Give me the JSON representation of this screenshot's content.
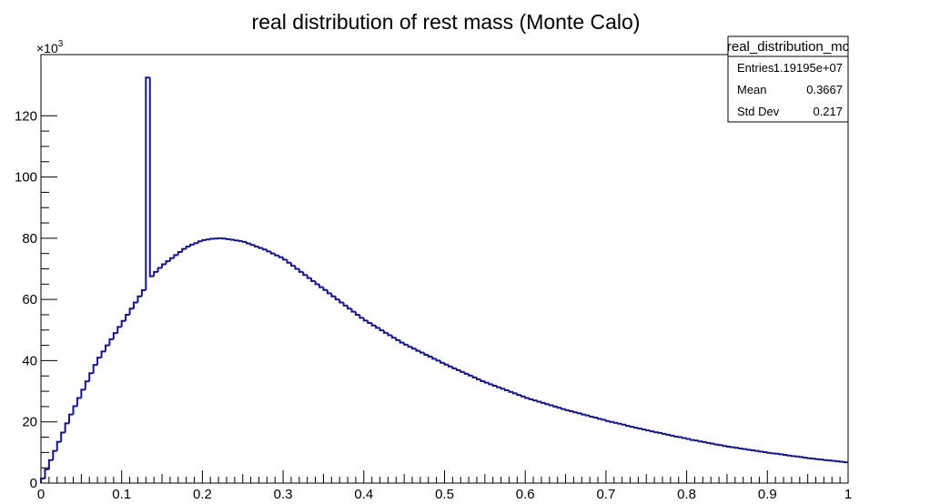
{
  "chart_data": {
    "type": "histogram",
    "title": "real distribution of rest mass (Monte Calo)",
    "y_multiplier": {
      "base": "×10",
      "exponent": "3"
    },
    "color": "#14148c",
    "bins": [
      0,
      0.005,
      0.01,
      0.015,
      0.02,
      0.025,
      0.03,
      0.035,
      0.04,
      0.045,
      0.05,
      0.055,
      0.06,
      0.065,
      0.07,
      0.075,
      0.08,
      0.085,
      0.09,
      0.095,
      0.1,
      0.105,
      0.11,
      0.115,
      0.12,
      0.125,
      0.13,
      0.135,
      0.14,
      0.145,
      0.15,
      0.155,
      0.16,
      0.165,
      0.17,
      0.175,
      0.18,
      0.185,
      0.19,
      0.195,
      0.2,
      0.205,
      0.21,
      0.215,
      0.22,
      0.225,
      0.23,
      0.235,
      0.24,
      0.245,
      0.25,
      0.255,
      0.26,
      0.265,
      0.27,
      0.275,
      0.28,
      0.285,
      0.29,
      0.295,
      0.3,
      0.305,
      0.31,
      0.315,
      0.32,
      0.325,
      0.33,
      0.335,
      0.34,
      0.345,
      0.35,
      0.355,
      0.36,
      0.365,
      0.37,
      0.375,
      0.38,
      0.385,
      0.39,
      0.395,
      0.4,
      0.405,
      0.41,
      0.415,
      0.42,
      0.425,
      0.43,
      0.435,
      0.44,
      0.445,
      0.45,
      0.455,
      0.46,
      0.465,
      0.47,
      0.475,
      0.48,
      0.485,
      0.49,
      0.495,
      0.5,
      0.505,
      0.51,
      0.515,
      0.52,
      0.525,
      0.53,
      0.535,
      0.54,
      0.545,
      0.55,
      0.555,
      0.56,
      0.565,
      0.57,
      0.575,
      0.58,
      0.585,
      0.59,
      0.595,
      0.6,
      0.605,
      0.61,
      0.615,
      0.62,
      0.625,
      0.63,
      0.635,
      0.64,
      0.645,
      0.65,
      0.655,
      0.66,
      0.665,
      0.67,
      0.675,
      0.68,
      0.685,
      0.69,
      0.695,
      0.7,
      0.705,
      0.71,
      0.715,
      0.72,
      0.725,
      0.73,
      0.735,
      0.74,
      0.745,
      0.75,
      0.755,
      0.76,
      0.765,
      0.77,
      0.775,
      0.78,
      0.785,
      0.79,
      0.795,
      0.8,
      0.805,
      0.81,
      0.815,
      0.82,
      0.825,
      0.83,
      0.835,
      0.84,
      0.845,
      0.85,
      0.855,
      0.86,
      0.865,
      0.87,
      0.875,
      0.88,
      0.885,
      0.89,
      0.895,
      0.9,
      0.905,
      0.91,
      0.915,
      0.92,
      0.925,
      0.93,
      0.935,
      0.94,
      0.945,
      0.95,
      0.955,
      0.96,
      0.965,
      0.97,
      0.975,
      0.98,
      0.985,
      0.99,
      0.995,
      1
    ],
    "values": [
      1.5,
      4.5,
      7.5,
      10.5,
      13.5,
      16.5,
      19.5,
      22.4,
      25.1,
      27.8,
      30.5,
      33.2,
      35.9,
      38.6,
      41.0,
      43.0,
      45.0,
      47.0,
      49.0,
      51.0,
      53.0,
      55.0,
      57.0,
      59.0,
      61.0,
      63.0,
      132.5,
      67.6,
      69.0,
      70.3,
      71.5,
      72.5,
      73.5,
      74.5,
      75.5,
      76.5,
      77.3,
      77.9,
      78.4,
      79.0,
      79.4,
      79.6,
      79.8,
      79.9,
      80.0,
      79.9,
      79.7,
      79.5,
      79.3,
      79.1,
      78.8,
      78.3,
      77.8,
      77.3,
      76.8,
      76.3,
      75.7,
      75.0,
      74.4,
      73.8,
      73.0,
      72.0,
      71.0,
      70.0,
      69.0,
      68.0,
      67.0,
      66.0,
      65.0,
      64.0,
      63.1,
      62.0,
      61.0,
      60.0,
      59.0,
      58.0,
      57.0,
      56.0,
      55.0,
      54.0,
      53.1,
      52.3,
      51.5,
      50.7,
      49.9,
      49.1,
      48.3,
      47.5,
      46.7,
      45.9,
      45.2,
      44.5,
      43.9,
      43.2,
      42.6,
      41.9,
      41.3,
      40.6,
      40.0,
      39.3,
      38.7,
      38.1,
      37.5,
      36.9,
      36.3,
      35.7,
      35.1,
      34.5,
      33.9,
      33.3,
      32.8,
      32.3,
      31.8,
      31.3,
      30.8,
      30.3,
      29.8,
      29.3,
      28.8,
      28.3,
      27.8,
      27.4,
      27.0,
      26.6,
      26.2,
      25.8,
      25.4,
      25.0,
      24.6,
      24.2,
      23.8,
      23.5,
      23.1,
      22.8,
      22.4,
      22.1,
      21.7,
      21.4,
      21.0,
      20.7,
      20.3,
      20.0,
      19.7,
      19.4,
      19.1,
      18.7,
      18.4,
      18.1,
      17.8,
      17.5,
      17.2,
      16.9,
      16.6,
      16.4,
      16.1,
      15.8,
      15.5,
      15.2,
      15.0,
      14.7,
      14.4,
      14.1,
      13.9,
      13.6,
      13.4,
      13.1,
      12.9,
      12.6,
      12.4,
      12.1,
      11.9,
      11.7,
      11.5,
      11.3,
      11.1,
      10.9,
      10.7,
      10.5,
      10.3,
      10.1,
      9.9,
      9.7,
      9.6,
      9.4,
      9.2,
      9.0,
      8.8,
      8.7,
      8.5,
      8.3,
      8.1,
      8.0,
      7.8,
      7.7,
      7.5,
      7.4,
      7.3,
      7.1,
      7.0,
      6.8
    ],
    "xlim": [
      0,
      1
    ],
    "xticks": [
      0,
      0.1,
      0.2,
      0.3,
      0.4,
      0.5,
      0.6,
      0.7,
      0.8,
      0.9,
      1
    ],
    "ylim": [
      0,
      140
    ],
    "yticks": [
      0,
      20,
      40,
      60,
      80,
      100,
      120
    ],
    "stats": {
      "title": "real_distribution_mc",
      "rows": [
        [
          "Entries",
          "1.19195e+07"
        ],
        [
          "Mean",
          "0.3667"
        ],
        [
          "Std Dev",
          "0.217"
        ]
      ]
    }
  }
}
